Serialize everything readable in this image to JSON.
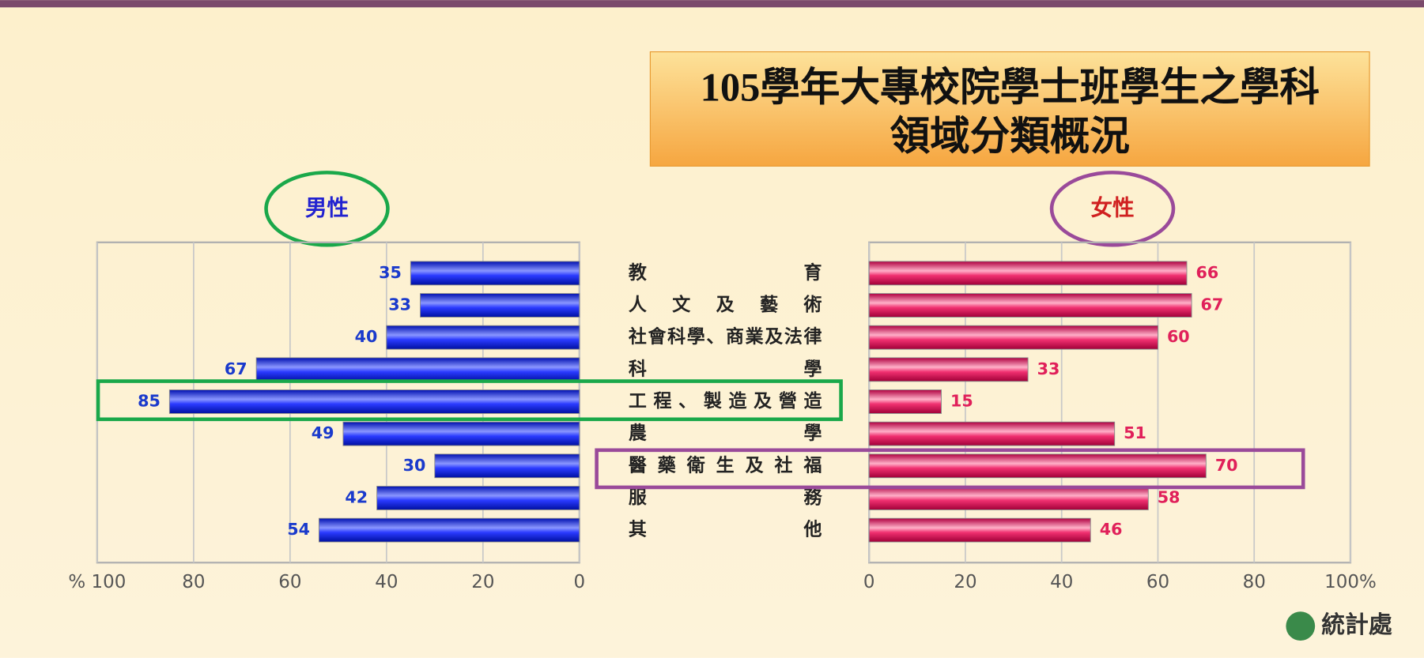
{
  "chart_data": [
    {
      "type": "hbar",
      "title": "105學年大專校院學士班學生之學科領域分類概況",
      "categories": [
        "教育",
        "人文及藝術",
        "社會科學、商業及法律",
        "科學",
        "工程、製造及營造",
        "農學",
        "醫藥衛生及社福",
        "服務",
        "其他"
      ],
      "series": [
        {
          "name": "男性",
          "color": "#0a1ee6",
          "values": [
            35,
            33,
            40,
            67,
            85,
            49,
            30,
            42,
            54
          ]
        }
      ],
      "xlim": [
        100,
        0
      ],
      "xticks": [
        {
          "value": 100,
          "label": "% 100"
        },
        80,
        60,
        40,
        20,
        0
      ],
      "grid": true
    },
    {
      "type": "hbar",
      "series": [
        {
          "name": "女性",
          "color": "#e0105a",
          "values": [
            66,
            67,
            60,
            33,
            15,
            51,
            70,
            58,
            46
          ]
        }
      ],
      "xlim": [
        0,
        100
      ],
      "xticks": [
        0,
        20,
        40,
        60,
        80,
        {
          "value": 100,
          "label": "100%"
        }
      ],
      "grid": true
    }
  ],
  "logo_text": "統計處"
}
